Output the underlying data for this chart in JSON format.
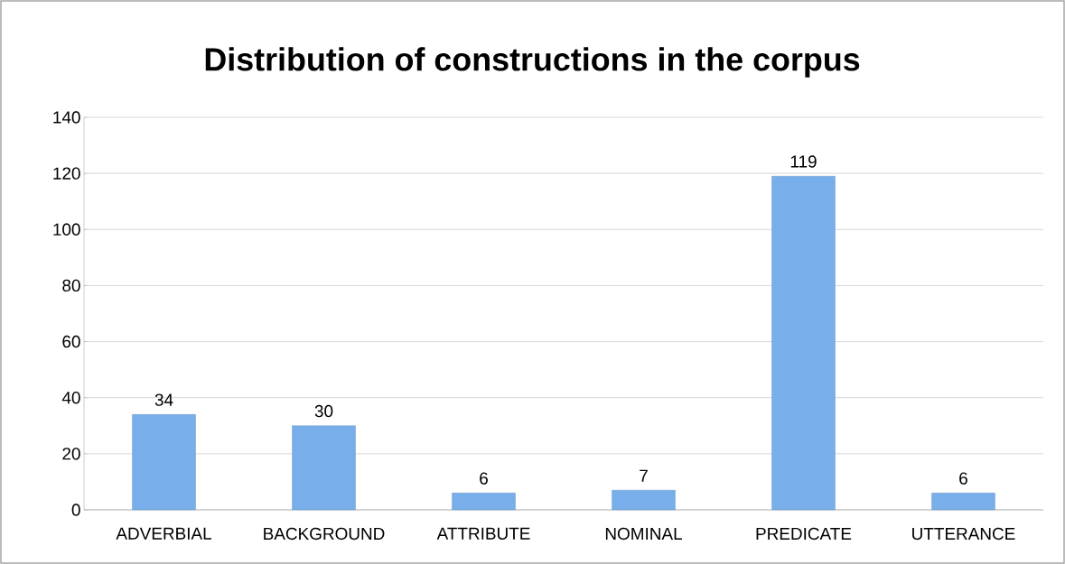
{
  "chart_data": {
    "type": "bar",
    "title": "Distribution of constructions in the corpus",
    "categories": [
      "ADVERBIAL",
      "BACKGROUND",
      "ATTRIBUTE",
      "NOMINAL",
      "PREDICATE",
      "UTTERANCE"
    ],
    "values": [
      34,
      30,
      6,
      7,
      119,
      6
    ],
    "color": "#78aeea",
    "ylim": [
      0,
      140
    ],
    "yticks": [
      0,
      20,
      40,
      60,
      80,
      100,
      120,
      140
    ],
    "grid": "y",
    "data_labels": true
  }
}
